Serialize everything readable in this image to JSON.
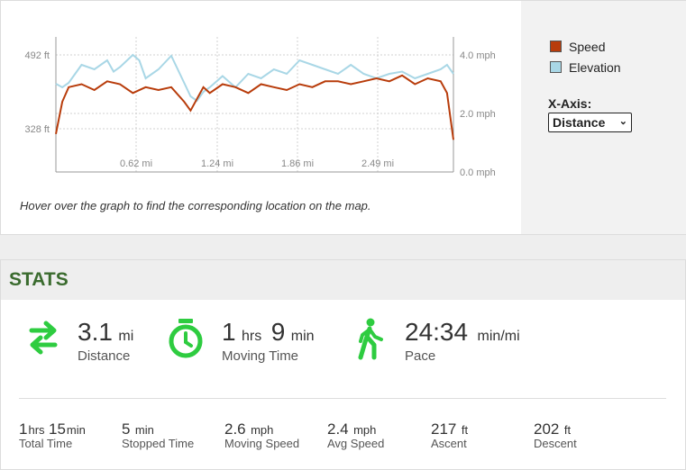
{
  "chart": {
    "left_ticks": [
      "492 ft",
      "328 ft"
    ],
    "right_ticks": [
      "4.0 mph",
      "2.0 mph",
      "0.0 mph"
    ],
    "x_ticks": [
      "0.62 mi",
      "1.24 mi",
      "1.86 mi",
      "2.49 mi"
    ],
    "legend": [
      {
        "label": "Speed",
        "color": "#b83c0b"
      },
      {
        "label": "Elevation",
        "color": "#a9d7e6"
      }
    ],
    "xaxis_label": "X-Axis:",
    "xaxis_selected": "Distance",
    "hint": "Hover over the graph to find the corresponding location on the map."
  },
  "chart_data": {
    "type": "line",
    "x_unit": "mi",
    "xlim": [
      0,
      3.1
    ],
    "y_right_lim": [
      0,
      4.0
    ],
    "series": [
      {
        "name": "Speed",
        "color": "#b83c0b",
        "axis": "right",
        "x": [
          0,
          0.05,
          0.1,
          0.2,
          0.3,
          0.4,
          0.5,
          0.6,
          0.7,
          0.8,
          0.9,
          1.0,
          1.05,
          1.1,
          1.15,
          1.2,
          1.3,
          1.4,
          1.5,
          1.6,
          1.7,
          1.8,
          1.9,
          2.0,
          2.1,
          2.2,
          2.3,
          2.4,
          2.5,
          2.6,
          2.7,
          2.8,
          2.9,
          3.0,
          3.05,
          3.1
        ],
        "values": [
          1.3,
          2.4,
          2.9,
          3.0,
          2.8,
          3.1,
          3.0,
          2.7,
          2.9,
          2.8,
          2.9,
          2.4,
          2.1,
          2.5,
          2.9,
          2.7,
          3.0,
          2.9,
          2.7,
          3.0,
          2.9,
          2.8,
          3.0,
          2.9,
          3.1,
          3.1,
          3.0,
          3.1,
          3.2,
          3.1,
          3.3,
          3.0,
          3.2,
          3.1,
          2.7,
          1.1
        ]
      },
      {
        "name": "Elevation",
        "color": "#a9d7e6",
        "axis": "left",
        "x": [
          0,
          0.05,
          0.1,
          0.2,
          0.3,
          0.4,
          0.45,
          0.5,
          0.6,
          0.65,
          0.7,
          0.8,
          0.9,
          1.0,
          1.05,
          1.1,
          1.15,
          1.2,
          1.3,
          1.4,
          1.5,
          1.6,
          1.7,
          1.8,
          1.9,
          2.0,
          2.1,
          2.2,
          2.3,
          2.4,
          2.5,
          2.6,
          2.7,
          2.8,
          2.9,
          3.0,
          3.05,
          3.1
        ],
        "values": [
          428,
          420,
          430,
          470,
          460,
          480,
          455,
          465,
          492,
          480,
          440,
          460,
          490,
          430,
          400,
          390,
          410,
          420,
          445,
          420,
          450,
          440,
          460,
          450,
          480,
          470,
          460,
          450,
          470,
          450,
          440,
          450,
          455,
          440,
          450,
          460,
          470,
          450
        ]
      }
    ]
  },
  "stats": {
    "title": "STATS",
    "distance": {
      "value": "3.1",
      "unit": "mi",
      "label": "Distance"
    },
    "moving_time": {
      "h": "1",
      "h_unit": "hrs",
      "m": "9",
      "m_unit": "min",
      "label": "Moving Time"
    },
    "pace": {
      "value": "24:34",
      "unit": "min/mi",
      "label": "Pace"
    },
    "total_time": {
      "h": "1",
      "h_unit": "hrs",
      "m": "15",
      "m_unit": "min",
      "label": "Total Time"
    },
    "stopped_time": {
      "value": "5",
      "unit": "min",
      "label": "Stopped Time"
    },
    "moving_speed": {
      "value": "2.6",
      "unit": "mph",
      "label": "Moving Speed"
    },
    "avg_speed": {
      "value": "2.4",
      "unit": "mph",
      "label": "Avg Speed"
    },
    "ascent": {
      "value": "217",
      "unit": "ft",
      "label": "Ascent"
    },
    "descent": {
      "value": "202",
      "unit": "ft",
      "label": "Descent"
    }
  }
}
